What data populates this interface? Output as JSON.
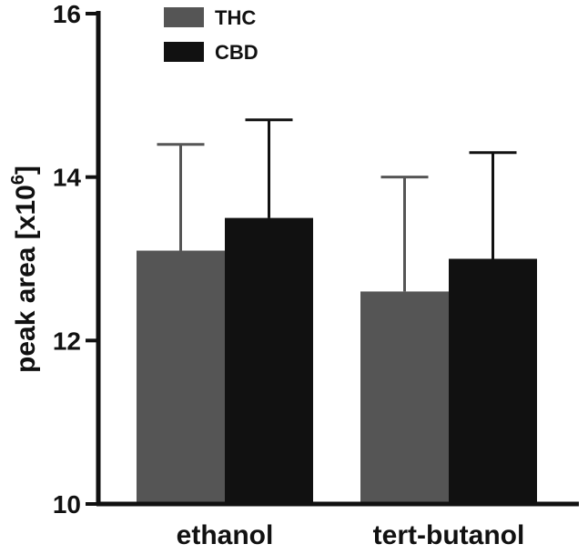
{
  "chart_data": {
    "type": "bar",
    "categories": [
      "ethanol",
      "tert-butanol"
    ],
    "series": [
      {
        "name": "THC",
        "values": [
          13.1,
          12.6
        ],
        "error": [
          1.3,
          1.4
        ],
        "color": "#555555"
      },
      {
        "name": "CBD",
        "values": [
          13.5,
          13.0
        ],
        "error": [
          1.2,
          1.3
        ],
        "color": "#111111"
      }
    ],
    "ylabel": {
      "prefix": "peak area [x10",
      "superscript": "6",
      "suffix": "]"
    },
    "ylim": [
      10,
      16
    ],
    "yticks": [
      10,
      12,
      14,
      16
    ],
    "error_bars": "upper only",
    "legend_position": "top-left",
    "grid": false
  }
}
